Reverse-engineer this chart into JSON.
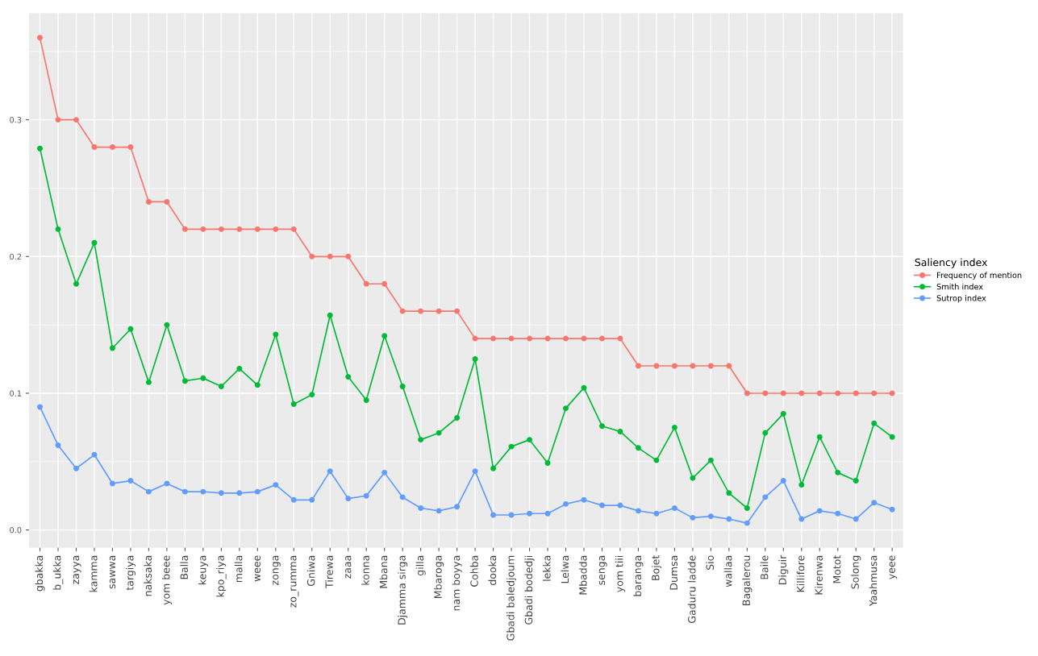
{
  "chart_data": {
    "type": "line",
    "legend_title": "Saliency index",
    "legend": "right",
    "grid": true,
    "marker": "circle",
    "line_style": "solid",
    "categories": [
      "gbakka",
      "b_ukka",
      "zayya",
      "kamma",
      "sawwa",
      "targiya",
      "naksaka",
      "yom beee",
      "Balla",
      "keuya",
      "kpo_riya",
      "malla",
      "weee",
      "zonga",
      "zo_rumma",
      "Gniwa",
      "Tirewa",
      "zaaa",
      "konna",
      "Mbana",
      "Djamma sirga",
      "gilla",
      "Mbaroga",
      "nam boyya",
      "Cohba",
      "dooka",
      "Gbadi baledjoum",
      "Gbadi bodedji",
      "lekka",
      "Lelwa",
      "Mbadda",
      "senga",
      "yom tiii",
      "baranga",
      "Bojet",
      "Dumsa",
      "Gaduru ladde",
      "Sio",
      "wallaa",
      "Bagalerou",
      "Baile",
      "Diguir",
      "Killifore",
      "Kirenwa",
      "Motot",
      "Solong",
      "Yaahmusa",
      "yeee"
    ],
    "ylim": [
      -0.013,
      0.378
    ],
    "yticks": [
      {
        "value": 0,
        "label": "0.0"
      },
      0.1,
      0.2,
      0.3
    ],
    "series": [
      {
        "name": "Frequency of mention",
        "color": "#f8766d",
        "values": [
          0.36,
          0.3,
          0.3,
          0.28,
          0.28,
          0.28,
          0.24,
          0.24,
          0.22,
          0.22,
          0.22,
          0.22,
          0.22,
          0.22,
          0.22,
          0.2,
          0.2,
          0.2,
          0.18,
          0.18,
          0.16,
          0.16,
          0.16,
          0.16,
          0.14,
          0.14,
          0.14,
          0.14,
          0.14,
          0.14,
          0.14,
          0.14,
          0.14,
          0.12,
          0.12,
          0.12,
          0.12,
          0.12,
          0.12,
          0.1,
          0.1,
          0.1,
          0.1,
          0.1,
          0.1,
          0.1,
          0.1,
          0.1
        ]
      },
      {
        "name": "Smith index",
        "color": "#00ba38",
        "values": [
          0.279,
          0.22,
          0.18,
          0.21,
          0.133,
          0.147,
          0.108,
          0.15,
          0.109,
          0.111,
          0.105,
          0.118,
          0.106,
          0.143,
          0.092,
          0.099,
          0.157,
          0.112,
          0.095,
          0.142,
          0.105,
          0.066,
          0.071,
          0.082,
          0.125,
          0.045,
          0.061,
          0.066,
          0.049,
          0.089,
          0.104,
          0.076,
          0.072,
          0.06,
          0.051,
          0.075,
          0.038,
          0.051,
          0.027,
          0.016,
          0.071,
          0.085,
          0.033,
          0.068,
          0.042,
          0.036,
          0.078,
          0.068
        ]
      },
      {
        "name": "Sutrop index",
        "color": "#619cff",
        "values": [
          0.09,
          0.062,
          0.045,
          0.055,
          0.034,
          0.036,
          0.028,
          0.034,
          0.028,
          0.028,
          0.027,
          0.027,
          0.028,
          0.033,
          0.022,
          0.022,
          0.043,
          0.023,
          0.025,
          0.042,
          0.024,
          0.016,
          0.014,
          0.017,
          0.043,
          0.011,
          0.011,
          0.012,
          0.012,
          0.019,
          0.022,
          0.018,
          0.018,
          0.014,
          0.012,
          0.016,
          0.009,
          0.01,
          0.008,
          0.005,
          0.024,
          0.036,
          0.008,
          0.014,
          0.012,
          0.008,
          0.02,
          0.015
        ]
      }
    ]
  }
}
